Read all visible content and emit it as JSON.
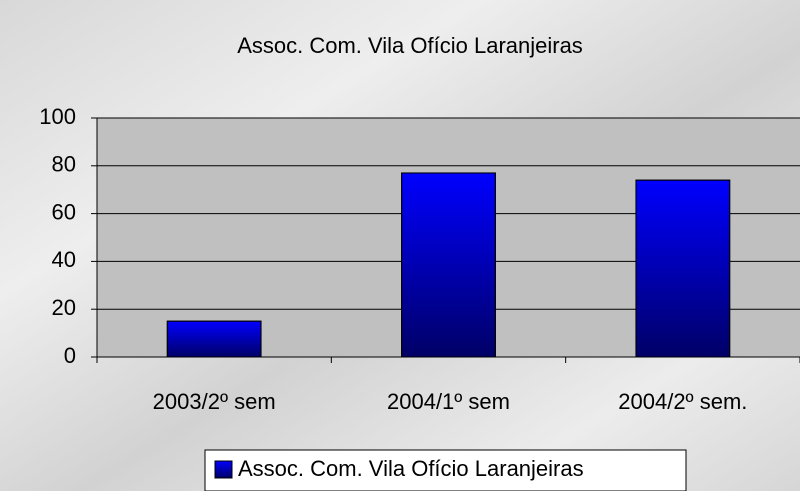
{
  "chart_data": {
    "type": "bar",
    "title": "Assoc. Com. Vila Ofício Laranjeiras",
    "categories": [
      "2003/2º sem",
      "2004/1º sem",
      "2004/2º sem."
    ],
    "series": [
      {
        "name": "Assoc. Com. Vila Ofício Laranjeiras",
        "color": "#0000ff",
        "values": [
          15,
          77,
          74
        ]
      }
    ],
    "ylim": [
      0,
      100
    ],
    "yticks": [
      0,
      20,
      40,
      60,
      80,
      100
    ],
    "grid": true,
    "legend": "bottom"
  }
}
